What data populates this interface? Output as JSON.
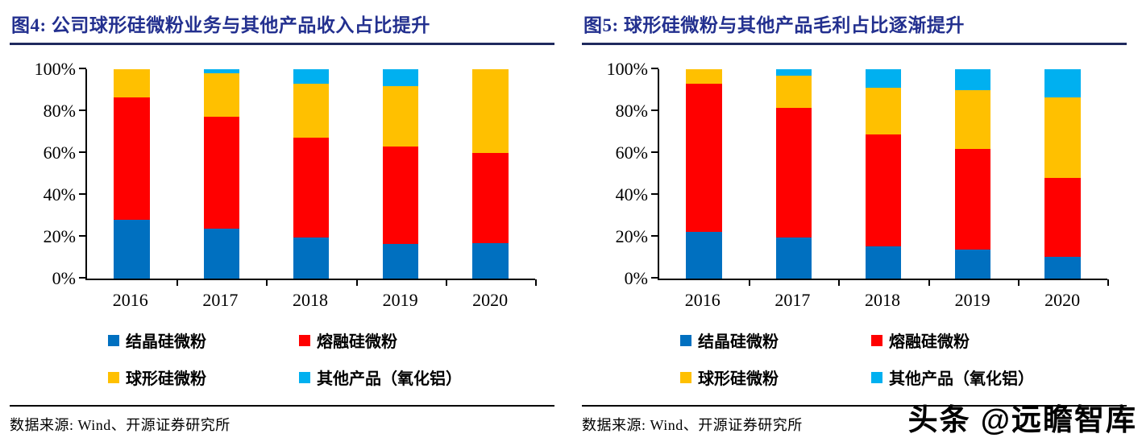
{
  "watermark": "头条 @远瞻智库",
  "panels": [
    {
      "title": "图4:  公司球形硅微粉业务与其他产品收入占比提升",
      "source": "数据来源: Wind、开源证券研究所"
    },
    {
      "title": "图5:  球形硅微粉与其他产品毛利占比逐渐提升",
      "source": "数据来源: Wind、开源证券研究所"
    }
  ],
  "colors": {
    "crystalline_blue": "#0070C0",
    "fused_red": "#FF0000",
    "spherical_yellow": "#FFC000",
    "other_cyan": "#00B0F0",
    "title_navy": "#23308F",
    "axis_black": "#000000"
  },
  "chart_data": [
    {
      "type": "bar",
      "stacked": true,
      "title": "图4: 公司球形硅微粉业务与其他产品收入占比提升",
      "categories": [
        "2016",
        "2017",
        "2018",
        "2019",
        "2020"
      ],
      "series": [
        {
          "name": "结晶硅微粉",
          "color": "#0070C0",
          "values": [
            28,
            24,
            19.5,
            16.5,
            17
          ]
        },
        {
          "name": "熔融硅微粉",
          "color": "#FF0000",
          "values": [
            58.5,
            53.5,
            48,
            46.5,
            43
          ]
        },
        {
          "name": "球形硅微粉",
          "color": "#FFC000",
          "values": [
            13.5,
            20.5,
            25.5,
            29,
            40
          ]
        },
        {
          "name": "其他产品（氧化铝）",
          "color": "#00B0F0",
          "values": [
            0,
            2,
            7,
            8,
            0
          ]
        }
      ],
      "y_ticks": [
        "0%",
        "20%",
        "40%",
        "60%",
        "80%",
        "100%"
      ],
      "ylim": [
        0,
        100
      ],
      "grid": false,
      "legend_position": "bottom"
    },
    {
      "type": "bar",
      "stacked": true,
      "title": "图5: 球形硅微粉与其他产品毛利占比逐渐提升",
      "categories": [
        "2016",
        "2017",
        "2018",
        "2019",
        "2020"
      ],
      "series": [
        {
          "name": "结晶硅微粉",
          "color": "#0070C0",
          "values": [
            22.5,
            19.5,
            15.5,
            14,
            10.5
          ]
        },
        {
          "name": "熔融硅微粉",
          "color": "#FF0000",
          "values": [
            70.5,
            62,
            53.5,
            48,
            37.5
          ]
        },
        {
          "name": "球形硅微粉",
          "color": "#FFC000",
          "values": [
            7,
            15.5,
            22,
            28,
            38.5
          ]
        },
        {
          "name": "其他产品（氧化铝）",
          "color": "#00B0F0",
          "values": [
            0,
            3,
            9,
            10,
            13.5
          ]
        }
      ],
      "y_ticks": [
        "0%",
        "20%",
        "40%",
        "60%",
        "80%",
        "100%"
      ],
      "ylim": [
        0,
        100
      ],
      "grid": false,
      "legend_position": "bottom"
    }
  ]
}
